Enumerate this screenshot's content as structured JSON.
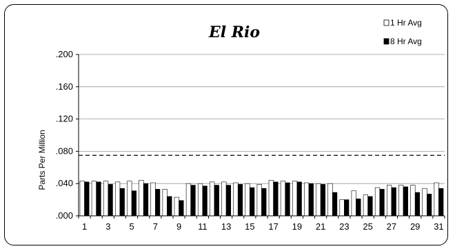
{
  "chart_data": {
    "type": "bar",
    "title": "El Rio",
    "ylabel": "Parts Per Million",
    "xlabel": "",
    "ylim": [
      0,
      0.2
    ],
    "yticks": [
      ".000",
      ".040",
      ".080",
      ".120",
      ".160",
      ".200"
    ],
    "ytick_values": [
      0,
      0.04,
      0.08,
      0.12,
      0.16,
      0.2
    ],
    "xtick_labels": [
      "1",
      "3",
      "5",
      "7",
      "9",
      "11",
      "13",
      "15",
      "17",
      "19",
      "21",
      "23",
      "25",
      "27",
      "29",
      "31"
    ],
    "categories": [
      "1",
      "2",
      "3",
      "4",
      "5",
      "6",
      "7",
      "8",
      "9",
      "10",
      "11",
      "12",
      "13",
      "14",
      "15",
      "16",
      "17",
      "18",
      "19",
      "20",
      "21",
      "22",
      "23",
      "24",
      "25",
      "26",
      "27",
      "28",
      "29",
      "30",
      "31"
    ],
    "grid": true,
    "legend_position": "top-right",
    "reference_line": {
      "value": 0.075,
      "style": "dashed"
    },
    "series": [
      {
        "name": "1 Hr Avg",
        "fill": "#ffffff",
        "values": [
          0.043,
          0.043,
          0.043,
          0.042,
          0.043,
          0.044,
          0.041,
          0.033,
          0.023,
          0.04,
          0.04,
          0.042,
          0.042,
          0.041,
          0.04,
          0.039,
          0.044,
          0.043,
          0.043,
          0.041,
          0.04,
          0.04,
          0.02,
          0.031,
          0.026,
          0.035,
          0.038,
          0.038,
          0.038,
          0.034,
          0.041
        ]
      },
      {
        "name": "8 Hr Avg",
        "fill": "#000000",
        "values": [
          0.042,
          0.042,
          0.039,
          0.034,
          0.031,
          0.04,
          0.033,
          0.024,
          0.019,
          0.038,
          0.037,
          0.038,
          0.038,
          0.039,
          0.035,
          0.034,
          0.042,
          0.041,
          0.042,
          0.04,
          0.039,
          0.029,
          0.02,
          0.021,
          0.024,
          0.033,
          0.035,
          0.036,
          0.029,
          0.027,
          0.034
        ]
      }
    ]
  }
}
